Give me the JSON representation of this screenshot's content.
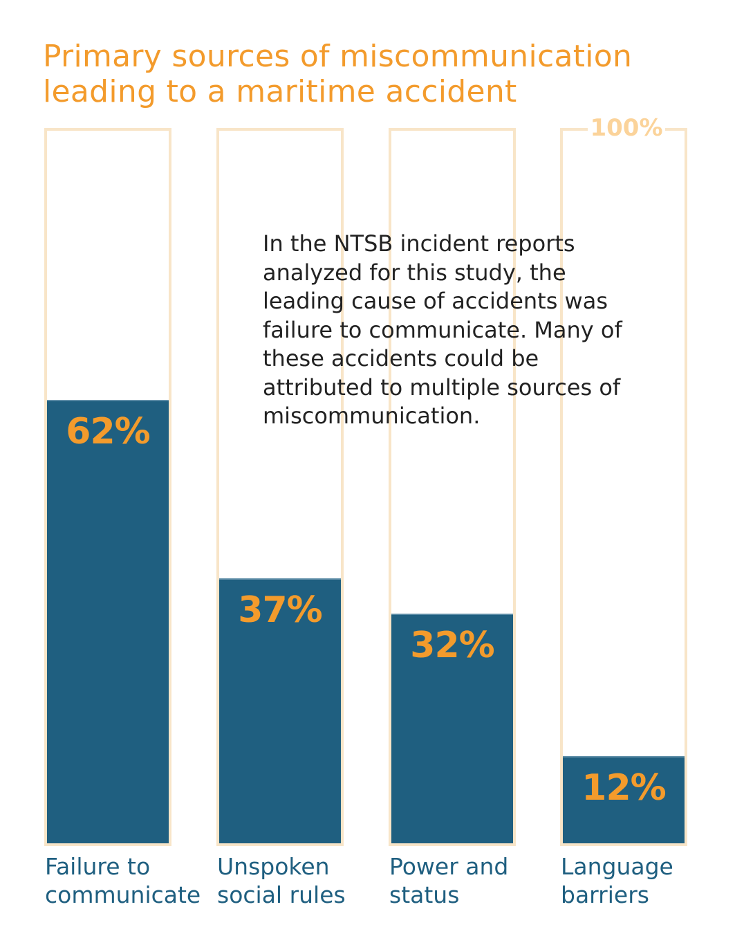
{
  "chart_data": {
    "type": "bar",
    "title": "Primary sources of miscommunication leading to a maritime accident",
    "categories": [
      "Failure to\ncommunicate",
      "Unspoken\nsocial rules",
      "Power and\nstatus",
      "Language\nbarriers"
    ],
    "values": [
      62,
      37,
      32,
      12
    ],
    "value_labels": [
      "62%",
      "37%",
      "32%",
      "12%"
    ],
    "ylim": [
      0,
      100
    ],
    "max_label": "100%",
    "annotation": "In the NTSB incident reports analyzed for this study, the leading cause of accidents was failure to communicate. Many of these accidents could be attributed to multiple sources of miscommunication.",
    "colors": {
      "fill": "#1F5F80",
      "outline": "#F8E5C8",
      "accent": "#F39B2C"
    }
  }
}
